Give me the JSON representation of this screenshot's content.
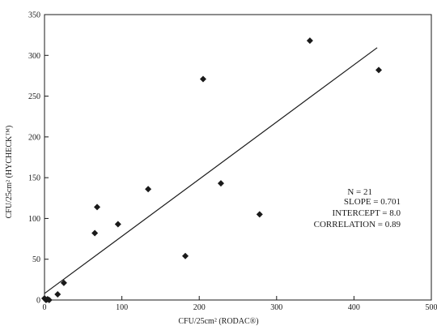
{
  "chart_data": {
    "type": "scatter",
    "xlabel": "CFU/25cm² (RODAC®)",
    "ylabel": "CFU/25cm² (HYCHECK™)",
    "xlim": [
      0,
      500
    ],
    "ylim": [
      0,
      350
    ],
    "x_ticks": [
      0,
      100,
      200,
      300,
      400,
      500
    ],
    "y_ticks": [
      0,
      50,
      100,
      150,
      200,
      250,
      300,
      350
    ],
    "grid": false,
    "legend": "none",
    "points": [
      {
        "x": 0,
        "y": 2
      },
      {
        "x": 2,
        "y": 0
      },
      {
        "x": 4,
        "y": 1
      },
      {
        "x": 6,
        "y": 0
      },
      {
        "x": 17,
        "y": 7
      },
      {
        "x": 25,
        "y": 21
      },
      {
        "x": 65,
        "y": 82
      },
      {
        "x": 68,
        "y": 114
      },
      {
        "x": 95,
        "y": 93
      },
      {
        "x": 134,
        "y": 136
      },
      {
        "x": 182,
        "y": 54
      },
      {
        "x": 205,
        "y": 271
      },
      {
        "x": 228,
        "y": 143
      },
      {
        "x": 278,
        "y": 105
      },
      {
        "x": 343,
        "y": 318
      },
      {
        "x": 432,
        "y": 282
      }
    ],
    "fit_line": {
      "slope": 0.701,
      "intercept": 8.0,
      "x_range": [
        0,
        430
      ]
    },
    "annotations": [
      "N = 21",
      "SLOPE = 0.701",
      "INTERCEPT = 8.0",
      "CORRELATION = 0.89"
    ],
    "colors": {
      "ink": "#1a1a1a",
      "background": "#ffffff"
    }
  }
}
